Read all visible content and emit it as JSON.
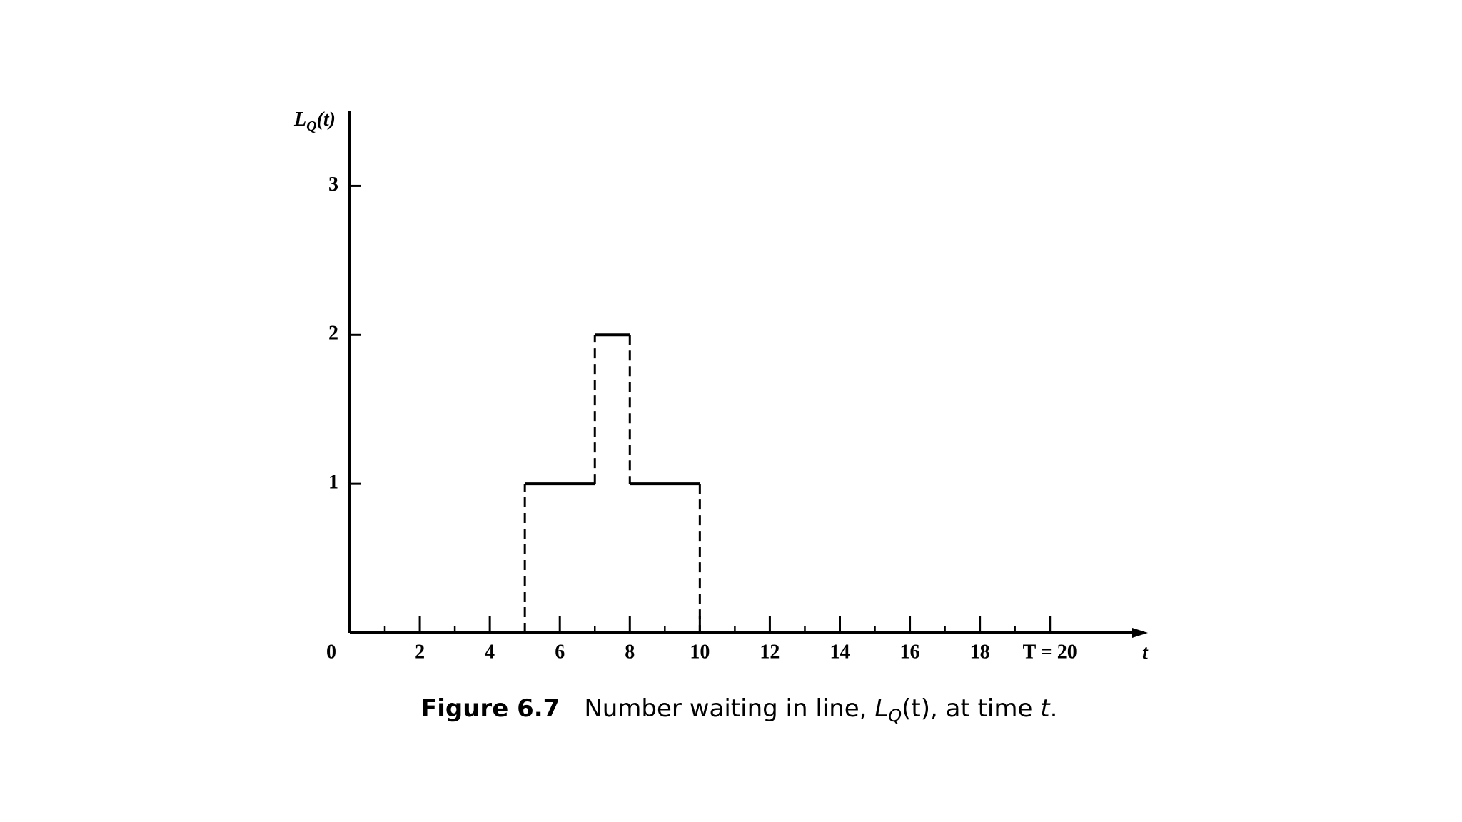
{
  "chart_data": {
    "type": "step",
    "x": [
      0,
      5,
      7,
      8,
      10,
      20
    ],
    "values": [
      0,
      1,
      2,
      1,
      0,
      0
    ],
    "color": "#000000",
    "xlim": [
      0,
      22.8
    ],
    "ylim": [
      0,
      3.5
    ],
    "xticks": [
      0,
      2,
      4,
      6,
      8,
      10,
      12,
      14,
      16,
      18,
      {
        "value": 20,
        "label": "T = 20"
      }
    ],
    "xminorticks": [
      1,
      3,
      5,
      7,
      9,
      11,
      13,
      15,
      17,
      19
    ],
    "yticks": [
      1,
      2,
      3
    ],
    "xlabel": "t",
    "ylabel": {
      "main": "L",
      "sub": "Q",
      "rest": "(t)"
    },
    "caption": {
      "label": "Figure 6.7",
      "text": "Number waiting in line, ",
      "sym": "L",
      "sub": "Q",
      "after": "(t), at time ",
      "var": "t",
      "end": "."
    }
  }
}
